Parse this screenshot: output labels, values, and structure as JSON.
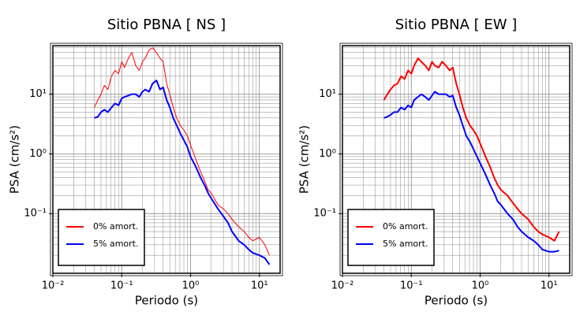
{
  "chart_data": [
    {
      "type": "line",
      "title": "Sitio PBNA [ NS ]",
      "x_label": "Periodo (s)",
      "y_label": "PSA (cm/s²)",
      "log_x": true,
      "log_y": true,
      "grid": true,
      "legend": "lower left",
      "xlim": [
        0.01,
        20
      ],
      "ylim": [
        0.01,
        65
      ],
      "xticks": [
        {
          "value": 0.01,
          "label": "10⁻²"
        },
        {
          "value": 0.1,
          "label": "10⁻¹"
        },
        {
          "value": 1,
          "label": "10⁰"
        },
        {
          "value": 10,
          "label": "10¹"
        }
      ],
      "yticks": [
        {
          "value": 0.1,
          "label": "10⁻¹"
        },
        {
          "value": 1,
          "label": "10⁰"
        },
        {
          "value": 10,
          "label": "10¹"
        }
      ],
      "x": [
        0.04,
        0.045,
        0.05,
        0.056,
        0.063,
        0.071,
        0.08,
        0.09,
        0.1,
        0.11,
        0.125,
        0.14,
        0.16,
        0.18,
        0.2,
        0.22,
        0.25,
        0.28,
        0.32,
        0.36,
        0.4,
        0.45,
        0.5,
        0.56,
        0.63,
        0.71,
        0.8,
        0.9,
        1.0,
        1.2,
        1.4,
        1.6,
        1.8,
        2.0,
        2.5,
        3.0,
        3.5,
        4.0,
        5.0,
        6.0,
        7.0,
        8.0,
        10,
        12,
        14
      ],
      "series": [
        {
          "name": "0% amort.",
          "color": "#ff0000",
          "width": 1,
          "values": [
            6,
            8,
            10,
            14,
            12,
            20,
            25,
            22,
            35,
            28,
            40,
            50,
            30,
            25,
            35,
            40,
            55,
            60,
            50,
            40,
            35,
            15,
            10,
            6,
            4,
            3,
            2.5,
            2,
            1.4,
            0.8,
            0.5,
            0.35,
            0.25,
            0.22,
            0.14,
            0.12,
            0.1,
            0.08,
            0.06,
            0.05,
            0.04,
            0.035,
            0.04,
            0.03,
            0.02
          ]
        },
        {
          "name": "5% amort.",
          "color": "#0000ff",
          "width": 2,
          "values": [
            4,
            4.2,
            5,
            5.5,
            5,
            6,
            7,
            6.5,
            8.5,
            9,
            9.5,
            10,
            10,
            9,
            11,
            12,
            11,
            15,
            17,
            12,
            13,
            8,
            6,
            4,
            3,
            2.2,
            1.7,
            1.3,
            0.9,
            0.6,
            0.4,
            0.3,
            0.22,
            0.18,
            0.12,
            0.09,
            0.07,
            0.05,
            0.035,
            0.03,
            0.025,
            0.022,
            0.02,
            0.018,
            0.014
          ]
        }
      ]
    },
    {
      "type": "line",
      "title": "Sitio PBNA [ EW ]",
      "x_label": "Periodo (s)",
      "y_label": "PSA (cm/s²)",
      "log_x": true,
      "log_y": true,
      "grid": true,
      "legend": "lower left",
      "xlim": [
        0.01,
        20
      ],
      "ylim": [
        0.01,
        65
      ],
      "xticks": [
        {
          "value": 0.01,
          "label": "10⁻²"
        },
        {
          "value": 0.1,
          "label": "10⁻¹"
        },
        {
          "value": 1,
          "label": "10⁰"
        },
        {
          "value": 10,
          "label": "10¹"
        }
      ],
      "yticks": [
        {
          "value": 0.1,
          "label": "10⁻¹"
        },
        {
          "value": 1,
          "label": "10⁰"
        },
        {
          "value": 10,
          "label": "10¹"
        }
      ],
      "x": [
        0.04,
        0.045,
        0.05,
        0.056,
        0.063,
        0.071,
        0.08,
        0.09,
        0.1,
        0.11,
        0.125,
        0.14,
        0.16,
        0.18,
        0.2,
        0.22,
        0.25,
        0.28,
        0.32,
        0.36,
        0.4,
        0.45,
        0.5,
        0.56,
        0.63,
        0.71,
        0.8,
        0.9,
        1.0,
        1.2,
        1.4,
        1.6,
        1.8,
        2.0,
        2.5,
        3.0,
        3.5,
        4.0,
        5.0,
        6.0,
        7.0,
        8.0,
        10,
        12,
        14
      ],
      "series": [
        {
          "name": "0% amort.",
          "color": "#ff0000",
          "width": 2,
          "values": [
            8,
            10,
            12,
            14,
            15,
            20,
            18,
            25,
            22,
            30,
            40,
            35,
            30,
            25,
            35,
            30,
            28,
            35,
            30,
            25,
            28,
            15,
            10,
            6,
            4,
            3,
            2.5,
            2,
            1.5,
            0.9,
            0.6,
            0.4,
            0.3,
            0.25,
            0.2,
            0.15,
            0.12,
            0.1,
            0.08,
            0.06,
            0.05,
            0.045,
            0.04,
            0.035,
            0.05
          ]
        },
        {
          "name": "5% amort.",
          "color": "#0000ff",
          "width": 2,
          "values": [
            4,
            4.2,
            4.5,
            5,
            5,
            6,
            5.5,
            6.5,
            6,
            8,
            9,
            10,
            9,
            8,
            9.5,
            11,
            10,
            10,
            10,
            9,
            9.5,
            6,
            4.5,
            3,
            2,
            1.6,
            1.2,
            0.9,
            0.7,
            0.45,
            0.3,
            0.22,
            0.16,
            0.14,
            0.1,
            0.08,
            0.06,
            0.05,
            0.04,
            0.035,
            0.03,
            0.025,
            0.023,
            0.023,
            0.024
          ]
        }
      ]
    }
  ]
}
